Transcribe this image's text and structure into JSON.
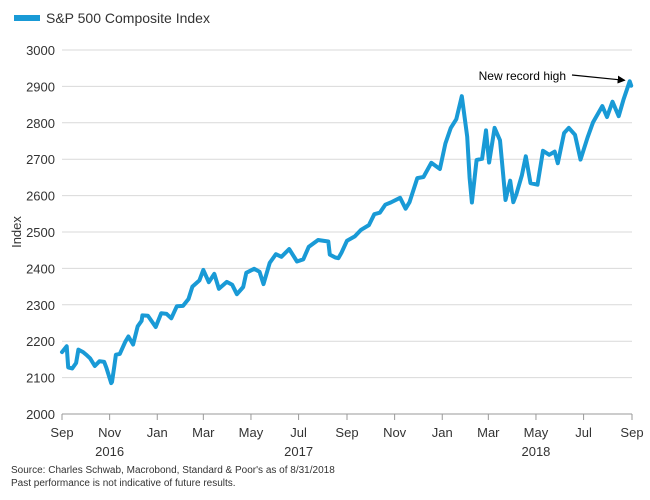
{
  "chart_data": {
    "type": "line",
    "title": "",
    "ylabel": "Index",
    "xlabel": "",
    "ylim": [
      2000,
      3000
    ],
    "yticks": [
      2000,
      2100,
      2200,
      2300,
      2400,
      2500,
      2600,
      2700,
      2800,
      2900,
      3000
    ],
    "grid": "horizontal",
    "legend_position": "top-left",
    "colors": {
      "series": "#199ad6",
      "grid": "#d9d9d9",
      "axis": "#999999"
    },
    "x_ticks": [
      {
        "date": "2016-09-01",
        "label": "Sep"
      },
      {
        "date": "2016-11-01",
        "label": "Nov"
      },
      {
        "date": "2017-01-01",
        "label": "Jan"
      },
      {
        "date": "2017-03-01",
        "label": "Mar"
      },
      {
        "date": "2017-05-01",
        "label": "May"
      },
      {
        "date": "2017-07-01",
        "label": "Jul"
      },
      {
        "date": "2017-09-01",
        "label": "Sep"
      },
      {
        "date": "2017-11-01",
        "label": "Nov"
      },
      {
        "date": "2018-01-01",
        "label": "Jan"
      },
      {
        "date": "2018-03-01",
        "label": "Mar"
      },
      {
        "date": "2018-05-01",
        "label": "May"
      },
      {
        "date": "2018-07-01",
        "label": "Jul"
      },
      {
        "date": "2018-09-01",
        "label": "Sep"
      }
    ],
    "year_labels": [
      {
        "date": "2016-11-01",
        "label": "2016"
      },
      {
        "date": "2017-07-01",
        "label": "2017"
      },
      {
        "date": "2018-05-01",
        "label": "2018"
      }
    ],
    "series": [
      {
        "name": "S&P 500 Composite Index",
        "points": [
          [
            "2016-09-01",
            2170
          ],
          [
            "2016-09-07",
            2186
          ],
          [
            "2016-09-09",
            2128
          ],
          [
            "2016-09-14",
            2125
          ],
          [
            "2016-09-19",
            2140
          ],
          [
            "2016-09-22",
            2177
          ],
          [
            "2016-09-28",
            2170
          ],
          [
            "2016-10-03",
            2161
          ],
          [
            "2016-10-07",
            2153
          ],
          [
            "2016-10-13",
            2132
          ],
          [
            "2016-10-19",
            2145
          ],
          [
            "2016-10-25",
            2143
          ],
          [
            "2016-10-28",
            2126
          ],
          [
            "2016-11-03",
            2085
          ],
          [
            "2016-11-04",
            2088
          ],
          [
            "2016-11-07",
            2131
          ],
          [
            "2016-11-09",
            2163
          ],
          [
            "2016-11-14",
            2165
          ],
          [
            "2016-11-21",
            2198
          ],
          [
            "2016-11-25",
            2213
          ],
          [
            "2016-12-01",
            2191
          ],
          [
            "2016-12-07",
            2241
          ],
          [
            "2016-12-12",
            2256
          ],
          [
            "2016-12-13",
            2271
          ],
          [
            "2016-12-20",
            2270
          ],
          [
            "2016-12-30",
            2239
          ],
          [
            "2017-01-06",
            2277
          ],
          [
            "2017-01-13",
            2275
          ],
          [
            "2017-01-19",
            2263
          ],
          [
            "2017-01-26",
            2296
          ],
          [
            "2017-02-03",
            2297
          ],
          [
            "2017-02-10",
            2316
          ],
          [
            "2017-02-15",
            2350
          ],
          [
            "2017-02-24",
            2367
          ],
          [
            "2017-03-01",
            2396
          ],
          [
            "2017-03-08",
            2362
          ],
          [
            "2017-03-15",
            2385
          ],
          [
            "2017-03-21",
            2344
          ],
          [
            "2017-03-31",
            2363
          ],
          [
            "2017-04-07",
            2355
          ],
          [
            "2017-04-13",
            2329
          ],
          [
            "2017-04-21",
            2349
          ],
          [
            "2017-04-25",
            2388
          ],
          [
            "2017-05-05",
            2399
          ],
          [
            "2017-05-12",
            2391
          ],
          [
            "2017-05-17",
            2357
          ],
          [
            "2017-05-25",
            2415
          ],
          [
            "2017-06-02",
            2439
          ],
          [
            "2017-06-09",
            2432
          ],
          [
            "2017-06-19",
            2453
          ],
          [
            "2017-06-29",
            2419
          ],
          [
            "2017-07-07",
            2425
          ],
          [
            "2017-07-14",
            2459
          ],
          [
            "2017-07-26",
            2478
          ],
          [
            "2017-08-08",
            2474
          ],
          [
            "2017-08-10",
            2438
          ],
          [
            "2017-08-17",
            2430
          ],
          [
            "2017-08-21",
            2428
          ],
          [
            "2017-08-25",
            2443
          ],
          [
            "2017-09-01",
            2476
          ],
          [
            "2017-09-11",
            2488
          ],
          [
            "2017-09-19",
            2506
          ],
          [
            "2017-09-29",
            2519
          ],
          [
            "2017-10-06",
            2549
          ],
          [
            "2017-10-13",
            2553
          ],
          [
            "2017-10-20",
            2575
          ],
          [
            "2017-10-27",
            2581
          ],
          [
            "2017-11-08",
            2594
          ],
          [
            "2017-11-15",
            2564
          ],
          [
            "2017-11-20",
            2582
          ],
          [
            "2017-11-30",
            2648
          ],
          [
            "2017-12-08",
            2651
          ],
          [
            "2017-12-18",
            2690
          ],
          [
            "2017-12-29",
            2673
          ],
          [
            "2018-01-05",
            2743
          ],
          [
            "2018-01-12",
            2786
          ],
          [
            "2018-01-19",
            2810
          ],
          [
            "2018-01-26",
            2873
          ],
          [
            "2018-02-02",
            2762
          ],
          [
            "2018-02-05",
            2649
          ],
          [
            "2018-02-08",
            2581
          ],
          [
            "2018-02-14",
            2698
          ],
          [
            "2018-02-21",
            2701
          ],
          [
            "2018-02-26",
            2779
          ],
          [
            "2018-03-02",
            2691
          ],
          [
            "2018-03-09",
            2786
          ],
          [
            "2018-03-16",
            2752
          ],
          [
            "2018-03-23",
            2588
          ],
          [
            "2018-03-29",
            2641
          ],
          [
            "2018-04-02",
            2582
          ],
          [
            "2018-04-06",
            2604
          ],
          [
            "2018-04-13",
            2656
          ],
          [
            "2018-04-18",
            2708
          ],
          [
            "2018-04-24",
            2634
          ],
          [
            "2018-05-03",
            2630
          ],
          [
            "2018-05-10",
            2723
          ],
          [
            "2018-05-18",
            2712
          ],
          [
            "2018-05-25",
            2721
          ],
          [
            "2018-05-29",
            2689
          ],
          [
            "2018-06-06",
            2772
          ],
          [
            "2018-06-12",
            2786
          ],
          [
            "2018-06-20",
            2767
          ],
          [
            "2018-06-27",
            2699
          ],
          [
            "2018-07-06",
            2759
          ],
          [
            "2018-07-13",
            2801
          ],
          [
            "2018-07-25",
            2846
          ],
          [
            "2018-07-31",
            2816
          ],
          [
            "2018-08-07",
            2858
          ],
          [
            "2018-08-15",
            2818
          ],
          [
            "2018-08-21",
            2863
          ],
          [
            "2018-08-29",
            2914
          ],
          [
            "2018-08-31",
            2902
          ]
        ]
      }
    ],
    "annotations": [
      {
        "text": "New record high",
        "target_date": "2018-08-29",
        "target_value": 2914
      }
    ]
  },
  "footnotes": {
    "source": "Source: Charles Schwab, Macrobond, Standard & Poor's as of 8/31/2018",
    "disclaimer": "Past performance is not indicative of future results."
  }
}
